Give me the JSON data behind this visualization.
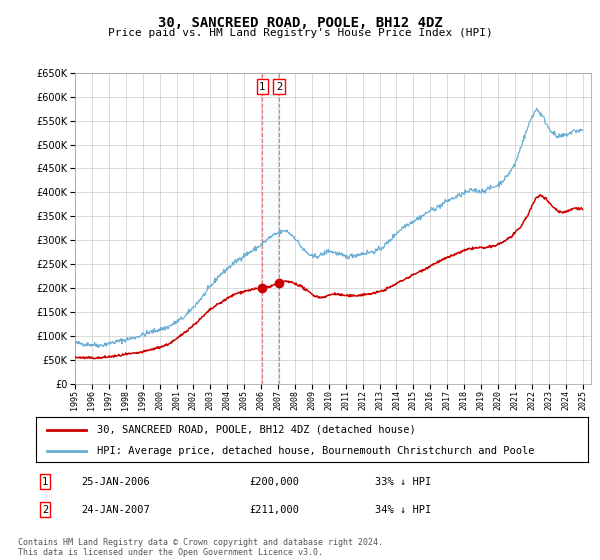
{
  "title": "30, SANCREED ROAD, POOLE, BH12 4DZ",
  "subtitle": "Price paid vs. HM Land Registry's House Price Index (HPI)",
  "legend_line1": "30, SANCREED ROAD, POOLE, BH12 4DZ (detached house)",
  "legend_line2": "HPI: Average price, detached house, Bournemouth Christchurch and Poole",
  "table_row1": [
    "1",
    "25-JAN-2006",
    "£200,000",
    "33% ↓ HPI"
  ],
  "table_row2": [
    "2",
    "24-JAN-2007",
    "£211,000",
    "34% ↓ HPI"
  ],
  "footnote": "Contains HM Land Registry data © Crown copyright and database right 2024.\nThis data is licensed under the Open Government Licence v3.0.",
  "sale1_year": 2006.07,
  "sale1_price": 200000,
  "sale2_year": 2007.07,
  "sale2_price": 211000,
  "red_color": "#cc0000",
  "blue_color": "#6aaed6",
  "shade_color": "#ddeeff",
  "ylim": [
    0,
    650000
  ],
  "yticks": [
    0,
    50000,
    100000,
    150000,
    200000,
    250000,
    300000,
    350000,
    400000,
    450000,
    500000,
    550000,
    600000,
    650000
  ],
  "background_color": "#ffffff",
  "grid_color": "#cccccc"
}
